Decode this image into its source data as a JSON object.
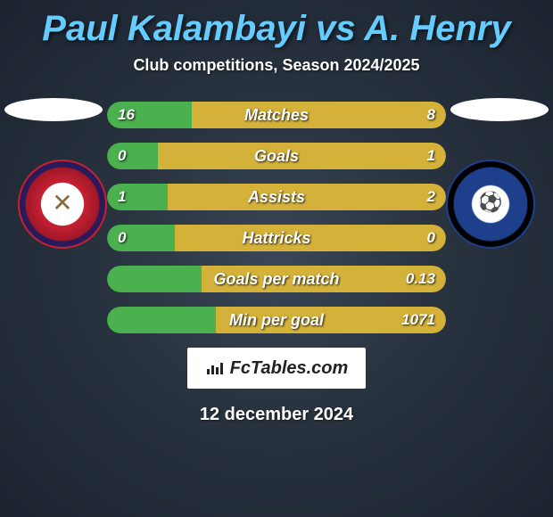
{
  "title": "Paul Kalambayi vs A. Henry",
  "subtitle": "Club competitions, Season 2024/2025",
  "date": "12 december 2024",
  "attribution": "FcTables.com",
  "colors": {
    "left_fill": "#4ab14e",
    "right_fill": "#d4b23a",
    "track": "#0d1018",
    "title": "#66ccff"
  },
  "stats": [
    {
      "label": "Matches",
      "left_val": "16",
      "right_val": "8",
      "left_pct": 25,
      "right_pct": 75
    },
    {
      "label": "Goals",
      "left_val": "0",
      "right_val": "1",
      "left_pct": 15,
      "right_pct": 85
    },
    {
      "label": "Assists",
      "left_val": "1",
      "right_val": "2",
      "left_pct": 18,
      "right_pct": 82
    },
    {
      "label": "Hattricks",
      "left_val": "0",
      "right_val": "0",
      "left_pct": 20,
      "right_pct": 80
    },
    {
      "label": "Goals per match",
      "left_val": "",
      "right_val": "0.13",
      "left_pct": 28,
      "right_pct": 72
    },
    {
      "label": "Min per goal",
      "left_val": "",
      "right_val": "1071",
      "left_pct": 32,
      "right_pct": 68
    }
  ]
}
